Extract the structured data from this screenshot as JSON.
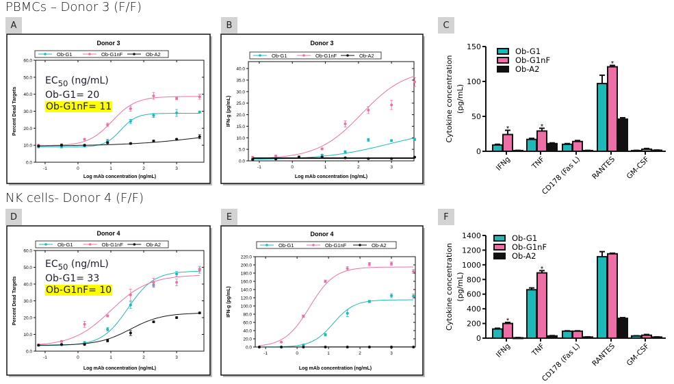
{
  "headers": {
    "top": "PBMCs – Donor 3 (F/F)",
    "bottom": "NK cells- Donor 4 (F/F)"
  },
  "panel_labels": [
    "A",
    "B",
    "C",
    "D",
    "E",
    "F"
  ],
  "colors": {
    "Ob-G1": "#1fb8b8",
    "Ob-G1nF": "#ee6fa6",
    "Ob-A2": "#111111",
    "highlight": "#ffff00"
  },
  "ec50": {
    "A": {
      "title": "EC",
      "sub": "50",
      "unit": " (ng/mL)",
      "g1": "Ob-G1= 20",
      "g1nf": "Ob-G1nF= 11"
    },
    "D": {
      "title": "EC",
      "sub": "50",
      "unit": " (ng/mL)",
      "g1": "Ob-G1= 33",
      "g1nf": "Ob-G1nF= 10"
    }
  },
  "chart_data": [
    {
      "id": "A",
      "type": "line",
      "title": "Donor 3",
      "xlabel": "Log mAb concentration (ng/mL)",
      "ylabel": "Percent Dead Targets",
      "xlim": [
        -1.29,
        3.83
      ],
      "ylim": [
        0,
        60
      ],
      "xticks": [
        -1,
        0,
        1,
        2,
        3
      ],
      "yticks": [
        0,
        10,
        20,
        30,
        40,
        50,
        60
      ],
      "x": [
        -1.2,
        -0.5,
        0.2,
        0.9,
        1.6,
        2.3,
        3.0,
        3.7
      ],
      "series": [
        {
          "name": "Ob-G1",
          "values": [
            9,
            9,
            9.5,
            12.5,
            24,
            27.5,
            29,
            29.5
          ],
          "err": [
            0.6,
            0.6,
            0.6,
            1,
            1.2,
            1.2,
            2,
            0.6
          ]
        },
        {
          "name": "Ob-G1nF",
          "values": [
            10,
            10.3,
            13.5,
            22,
            31.5,
            39,
            37.5,
            38.5
          ],
          "err": [
            0.5,
            0.5,
            0.5,
            1,
            1.5,
            2,
            0.8,
            1.5
          ]
        },
        {
          "name": "Ob-A2",
          "values": [
            9.5,
            10,
            10,
            11.5,
            11,
            12.5,
            13.5,
            15
          ],
          "err": [
            0.4,
            0.4,
            0.4,
            0.5,
            0.5,
            0.5,
            0.5,
            1.2
          ]
        }
      ]
    },
    {
      "id": "B",
      "type": "line",
      "title": "Donor 3",
      "xlabel": "Log mAb concentration (ng/mL)",
      "ylabel": "IFN-g (pg/mL)",
      "xlim": [
        -1.33,
        3.68
      ],
      "ylim": [
        0,
        43
      ],
      "xticks": [
        -1,
        0,
        1,
        2,
        3
      ],
      "yticks": [
        0,
        5,
        10,
        15,
        20,
        25,
        30,
        35,
        40
      ],
      "x": [
        -1.2,
        -0.5,
        0.2,
        0.9,
        1.6,
        2.3,
        3.0,
        3.7
      ],
      "series": [
        {
          "name": "Ob-G1",
          "values": [
            0.8,
            1.2,
            1.8,
            2.5,
            3.8,
            9.1,
            8.8,
            9.3
          ],
          "err": [
            0.3,
            0.3,
            0.3,
            0.4,
            0.6,
            0.6,
            0.4,
            0.5
          ]
        },
        {
          "name": "Ob-G1nF",
          "values": [
            1.5,
            2,
            1.8,
            5.2,
            16,
            22,
            24.2,
            34.2
          ],
          "err": [
            0.5,
            0.5,
            0.4,
            0.4,
            1.3,
            1.5,
            2,
            1.9
          ]
        },
        {
          "name": "Ob-A2",
          "values": [
            0.6,
            0.8,
            1.6,
            1.6,
            1.3,
            1.0,
            1.0,
            1.6
          ],
          "err": [
            0.2,
            0.2,
            0.2,
            0.2,
            0.2,
            0.2,
            0.2,
            0.2
          ]
        }
      ]
    },
    {
      "id": "C",
      "type": "bar",
      "ylabel": [
        "Cytokine concentration",
        "(pg/mL)"
      ],
      "ylim": [
        0,
        150
      ],
      "yticks": [
        0,
        50,
        100,
        150
      ],
      "categories": [
        "IFNg",
        "TNF",
        "CD178 (Fas L)",
        "RANTES",
        "GM-CSF"
      ],
      "series": [
        {
          "name": "Ob-G1",
          "values": [
            9,
            17,
            10,
            97,
            1
          ],
          "err": [
            1,
            1.5,
            1,
            12,
            0.3
          ]
        },
        {
          "name": "Ob-G1nF",
          "values": [
            24,
            29,
            14,
            121,
            3
          ],
          "err": [
            6,
            4,
            1.5,
            2,
            1
          ]
        },
        {
          "name": "Ob-A2",
          "values": [
            1,
            11,
            1,
            46,
            1.5
          ],
          "err": [
            0.3,
            1,
            0.3,
            2,
            0.3
          ]
        }
      ],
      "significance": [
        {
          "category": "IFNg",
          "series": "Ob-G1nF",
          "label": "*"
        },
        {
          "category": "TNF",
          "series": "Ob-G1nF",
          "label": "*"
        },
        {
          "category": "RANTES",
          "series": "Ob-G1nF",
          "label": "*"
        }
      ]
    },
    {
      "id": "D",
      "type": "line",
      "title": "Donor 4",
      "xlabel": "Log mAb concentration (ng/mL)",
      "ylabel": "Percent Dead Targets",
      "xlim": [
        -1.29,
        3.83
      ],
      "ylim": [
        0,
        60
      ],
      "xticks": [
        -1,
        0,
        1,
        2,
        3
      ],
      "yticks": [
        0,
        10,
        20,
        30,
        40,
        50,
        60
      ],
      "x": [
        -1.2,
        -0.5,
        0.2,
        0.9,
        1.6,
        2.3,
        3.0,
        3.7
      ],
      "series": [
        {
          "name": "Ob-G1",
          "values": [
            3.5,
            3.8,
            5.2,
            13,
            27.5,
            39.5,
            46,
            48.5
          ],
          "err": [
            0.4,
            0.4,
            0.5,
            1,
            2,
            1.5,
            1.5,
            2
          ]
        },
        {
          "name": "Ob-G1nF",
          "values": [
            3.8,
            5.8,
            16,
            21,
            33.5,
            41,
            41,
            49
          ],
          "err": [
            0.4,
            0.5,
            1.8,
            0.6,
            3.5,
            2.5,
            2,
            1.5
          ]
        },
        {
          "name": "Ob-A2",
          "values": [
            3.5,
            4,
            4,
            6.3,
            10.8,
            17.5,
            20,
            22.8
          ],
          "err": [
            0.3,
            0.3,
            0.3,
            0.8,
            1.5,
            0.5,
            0.5,
            0.5
          ]
        }
      ]
    },
    {
      "id": "E",
      "type": "line",
      "title": "Donor 4",
      "xlabel": "Log mAb concentration (ng/mL)",
      "ylabel": "IFN-g (pg/mL)",
      "xlim": [
        -1.33,
        3.76
      ],
      "ylim": [
        0,
        220
      ],
      "xticks": [
        -1,
        0,
        1,
        2,
        3
      ],
      "yticks": [
        0,
        20,
        40,
        60,
        80,
        100,
        120,
        140,
        160,
        180,
        200,
        220
      ],
      "x": [
        -1.2,
        -0.5,
        0.2,
        0.9,
        1.6,
        2.3,
        3.0,
        3.7
      ],
      "series": [
        {
          "name": "Ob-G1",
          "values": [
            0,
            0,
            5,
            30,
            82,
            111,
            125,
            124
          ],
          "err": [
            0.5,
            0.5,
            1,
            3,
            8,
            3,
            5,
            5
          ]
        },
        {
          "name": "Ob-G1nF",
          "values": [
            0,
            12,
            75,
            160,
            191,
            202,
            203,
            184
          ],
          "err": [
            0.5,
            1,
            3,
            3,
            5,
            4,
            4,
            5
          ]
        },
        {
          "name": "Ob-A2",
          "values": [
            0,
            0,
            0,
            0,
            0,
            0,
            0,
            0
          ],
          "err": [
            0,
            0,
            0,
            0,
            0,
            0,
            0,
            0
          ]
        }
      ]
    },
    {
      "id": "F",
      "type": "bar",
      "ylabel": [
        "Cytokine concentration",
        "(pg/mL)"
      ],
      "ylim": [
        0,
        1400
      ],
      "yticks": [
        0,
        200,
        400,
        600,
        800,
        1000,
        1200,
        1400
      ],
      "categories": [
        "IFNg",
        "TNF",
        "CD178 (Fas L)",
        "RANTES",
        "GM-CSF"
      ],
      "series": [
        {
          "name": "Ob-G1",
          "values": [
            125,
            660,
            95,
            1110,
            30
          ],
          "err": [
            10,
            25,
            5,
            70,
            3
          ]
        },
        {
          "name": "Ob-G1nF",
          "values": [
            200,
            890,
            95,
            1150,
            40
          ],
          "err": [
            15,
            30,
            5,
            8,
            10
          ]
        },
        {
          "name": "Ob-A2",
          "values": [
            5,
            30,
            15,
            270,
            15
          ],
          "err": [
            3,
            5,
            3,
            10,
            3
          ]
        }
      ],
      "significance": [
        {
          "category": "IFNg",
          "series": "Ob-G1nF",
          "label": "*"
        },
        {
          "category": "TNF",
          "series": "Ob-G1nF",
          "label": "*"
        }
      ]
    }
  ]
}
